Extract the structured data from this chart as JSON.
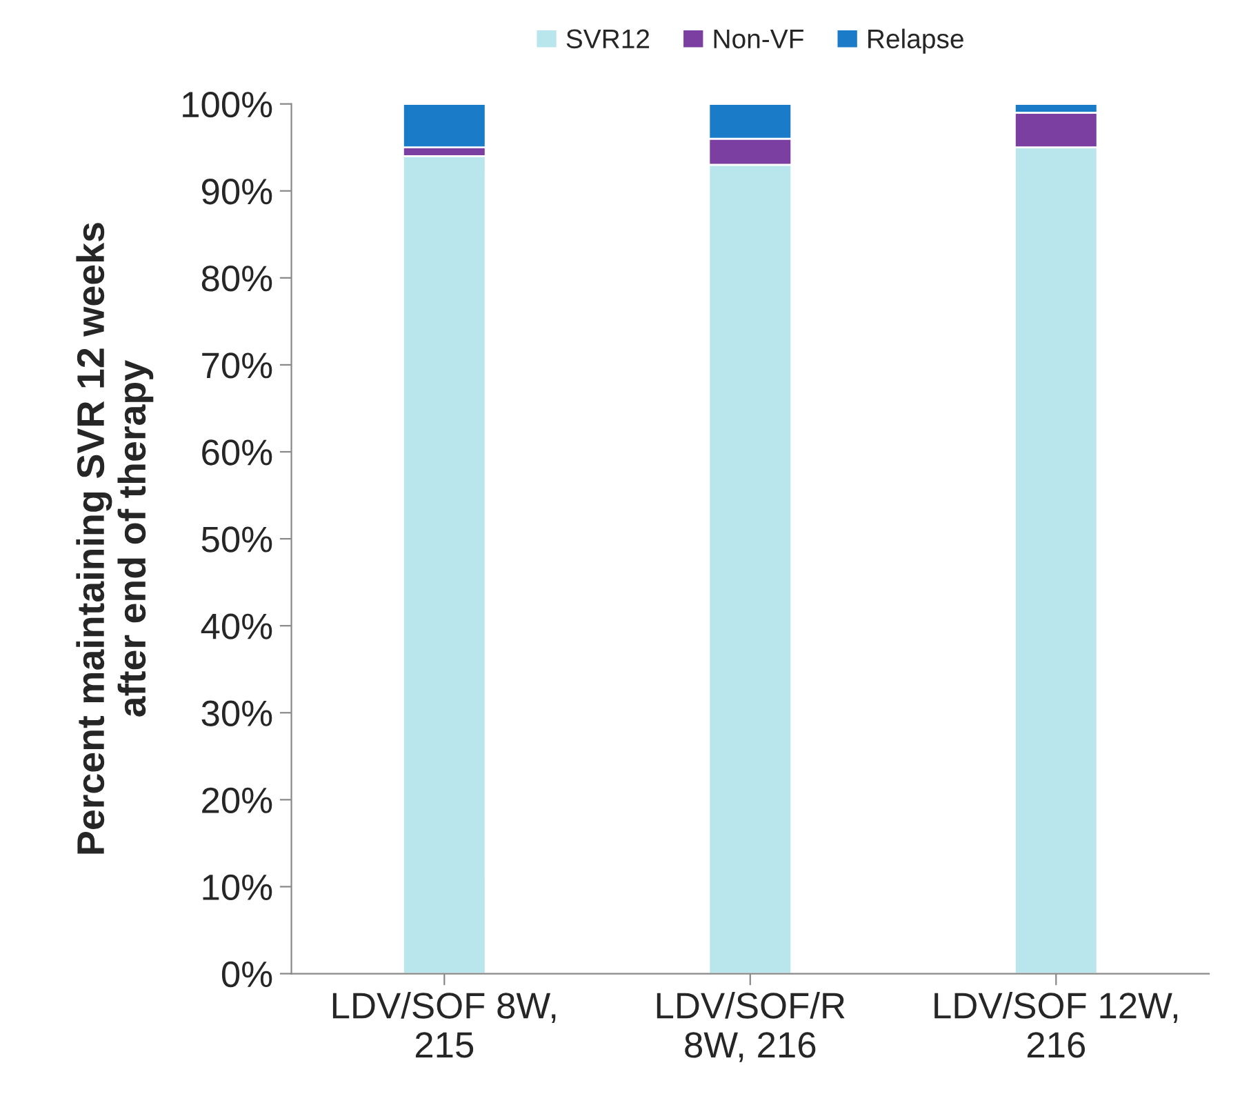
{
  "chart_data": {
    "type": "bar",
    "stacked": true,
    "ylabel": "Percent maintaining SVR 12 weeks\nafter end of therapy",
    "categories": [
      "LDV/SOF 8W,\n215",
      "LDV/SOF/R\n8W, 216",
      "LDV/SOF 12W,\n216"
    ],
    "series": [
      {
        "name": "SVR12",
        "color": "#b8e6ec",
        "values": [
          94,
          93,
          95
        ]
      },
      {
        "name": "Non-VF",
        "color": "#7a3fa0",
        "values": [
          1,
          3,
          4
        ]
      },
      {
        "name": "Relapse",
        "color": "#1a7cc8",
        "values": [
          5,
          4,
          1
        ]
      }
    ],
    "ylim": [
      0,
      100
    ],
    "yticks": [
      {
        "value": 0,
        "label": "0%"
      },
      {
        "value": 10,
        "label": "10%"
      },
      {
        "value": 20,
        "label": "20%"
      },
      {
        "value": 30,
        "label": "30%"
      },
      {
        "value": 40,
        "label": "40%"
      },
      {
        "value": 50,
        "label": "50%"
      },
      {
        "value": 60,
        "label": "60%"
      },
      {
        "value": 70,
        "label": "70%"
      },
      {
        "value": 80,
        "label": "80%"
      },
      {
        "value": 90,
        "label": "90%"
      },
      {
        "value": 100,
        "label": "100%"
      }
    ],
    "legend": "top",
    "grid": false
  }
}
